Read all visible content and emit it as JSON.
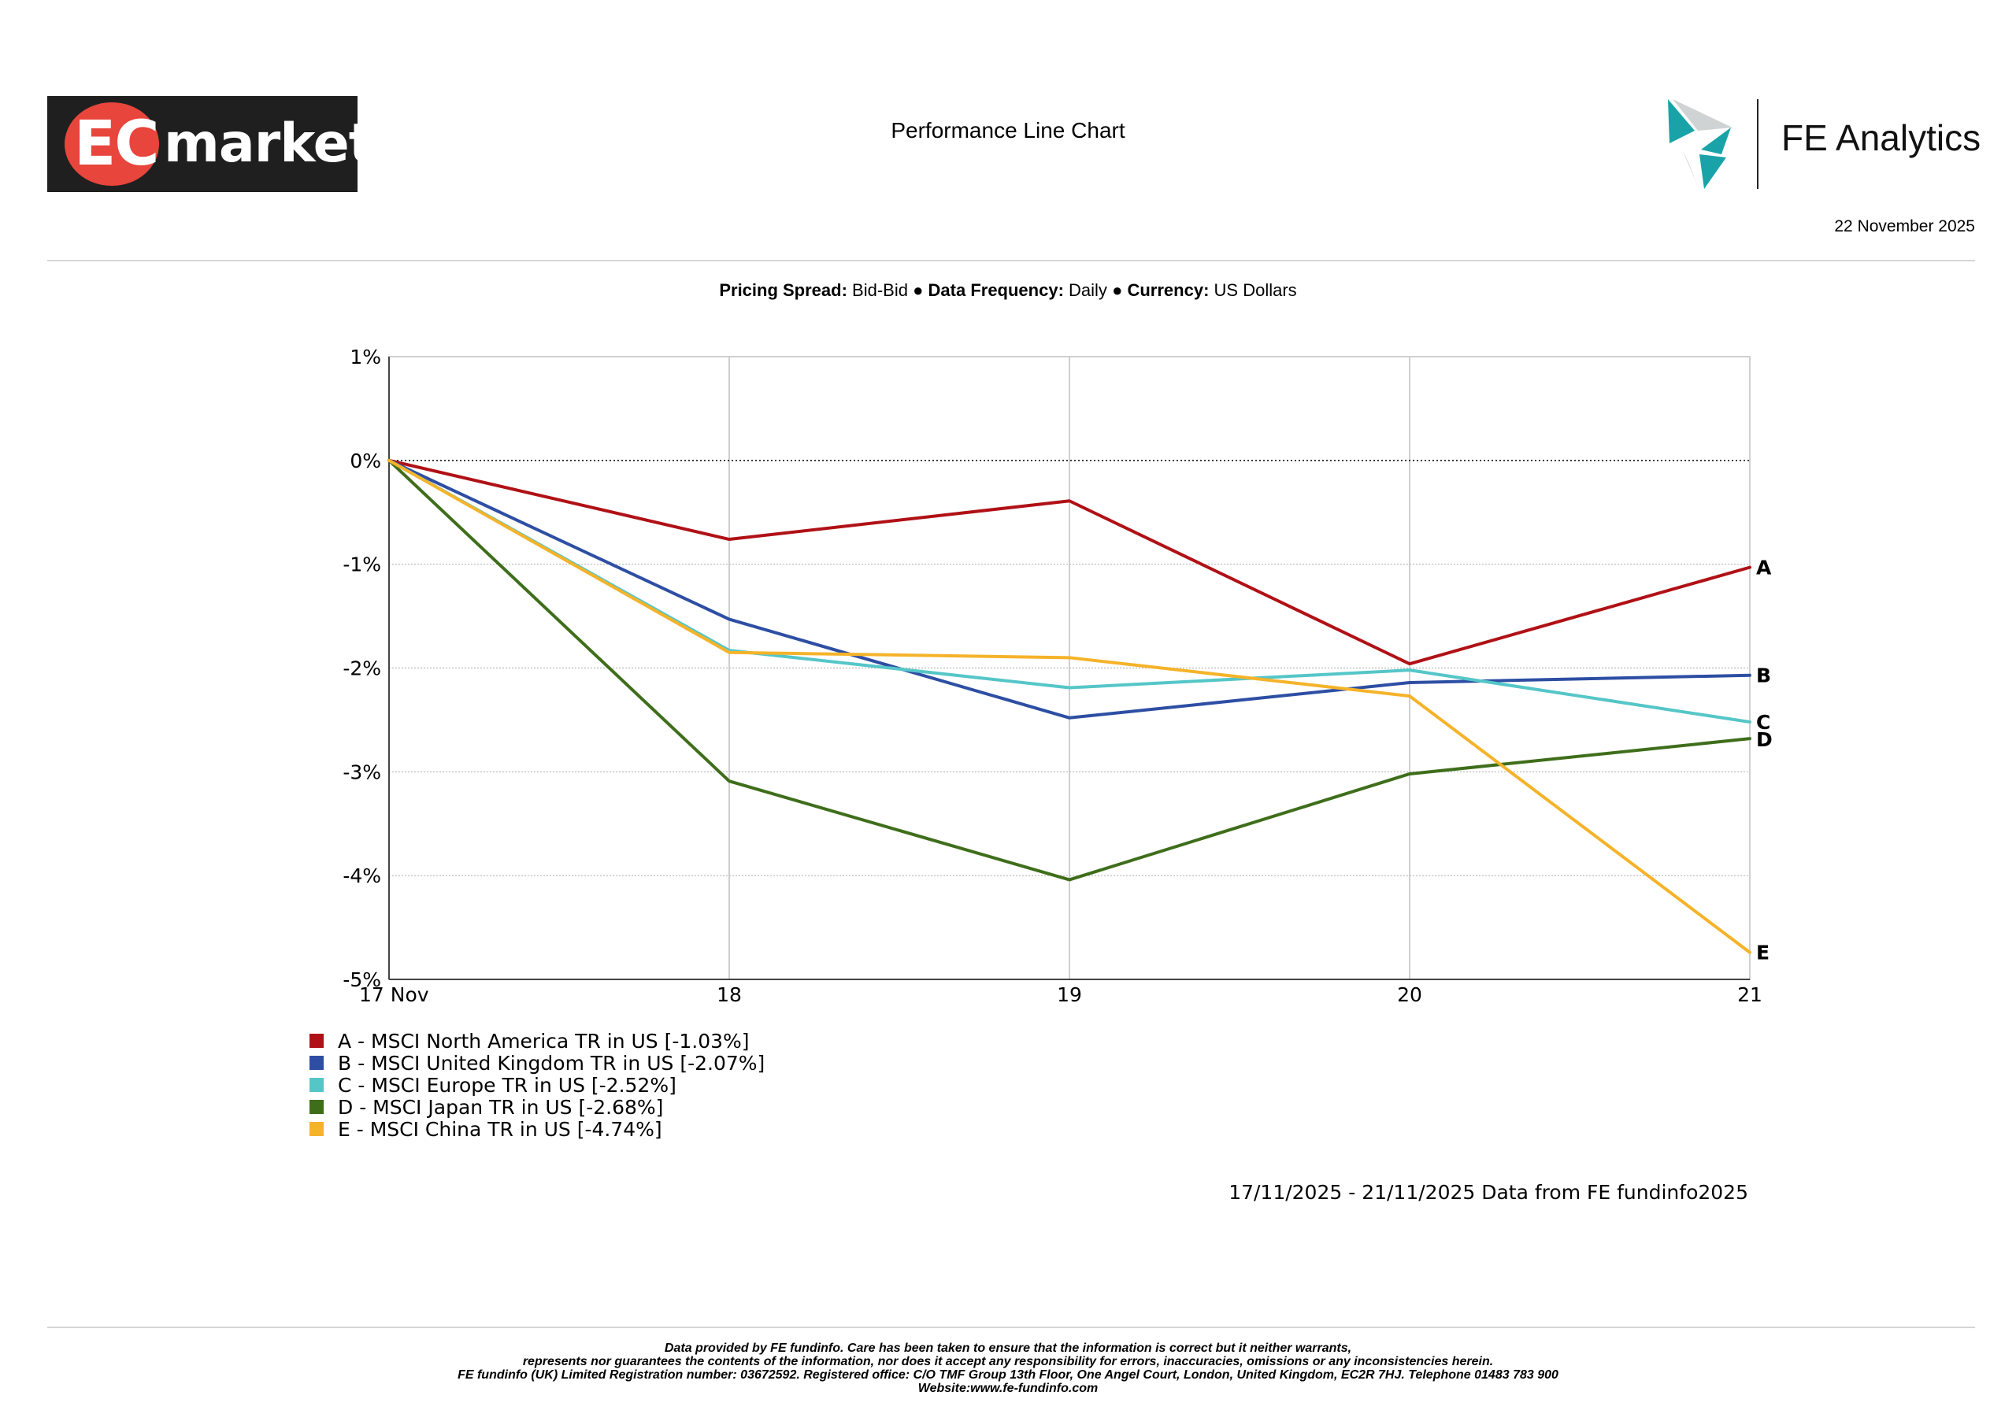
{
  "header": {
    "logo_left_text": "EC markets",
    "logo_left_part1": "EC",
    "logo_left_part2": "markets",
    "title": "Performance Line Chart",
    "logo_right_text": "FE Analytics",
    "date": "22 November 2025"
  },
  "spec": {
    "pricing_spread_label": "Pricing Spread:",
    "pricing_spread_value": "Bid-Bid",
    "sep1": "●",
    "data_frequency_label": "Data Frequency:",
    "data_frequency_value": "Daily",
    "sep2": "●",
    "currency_label": "Currency:",
    "currency_value": "US Dollars"
  },
  "chart_data": {
    "type": "line",
    "title": "Performance Line Chart",
    "x": [
      "17 Nov",
      "18",
      "19",
      "20",
      "21"
    ],
    "ylim": [
      -5,
      1
    ],
    "yticks": [
      1,
      0,
      -1,
      -2,
      -3,
      -4,
      -5
    ],
    "ytick_labels": [
      "1%",
      "0%",
      "-1%",
      "-2%",
      "-3%",
      "-4%",
      "-5%"
    ],
    "grid": true,
    "series": [
      {
        "id": "A",
        "name": "A - MSCI North America TR in US [-1.03%]",
        "color": "#b01116",
        "values": [
          0,
          -0.76,
          -0.39,
          -1.96,
          -1.03
        ]
      },
      {
        "id": "B",
        "name": "B - MSCI United Kingdom TR in US [-2.07%]",
        "color": "#2d4ea3",
        "values": [
          0,
          -1.53,
          -2.48,
          -2.14,
          -2.07
        ]
      },
      {
        "id": "C",
        "name": "C - MSCI Europe TR in US [-2.52%]",
        "color": "#55c6c8",
        "values": [
          0,
          -1.83,
          -2.19,
          -2.02,
          -2.52
        ]
      },
      {
        "id": "D",
        "name": "D - MSCI Japan TR in US [-2.68%]",
        "color": "#3f6e1b",
        "values": [
          0,
          -3.09,
          -4.04,
          -3.02,
          -2.68
        ]
      },
      {
        "id": "E",
        "name": "E - MSCI China TR in US [-4.74%]",
        "color": "#f5b32a",
        "values": [
          0,
          -1.85,
          -1.9,
          -2.27,
          -4.74
        ]
      }
    ]
  },
  "source_note": "17/11/2025 - 21/11/2025 Data from FE fundinfo2025",
  "disclaimer": [
    "Data provided by FE fundinfo. Care has been taken to ensure that the information is correct but it neither warrants,",
    "represents nor guarantees the contents of the information, nor does it accept any responsibility for errors, inaccuracies, omissions or any inconsistencies herein.",
    "FE fundinfo (UK) Limited Registration number: 03672592. Registered office: C/O TMF Group 13th Floor, One Angel Court, London, United Kingdom, EC2R 7HJ. Telephone 01483 783 900",
    "Website:www.fe-fundinfo.com"
  ]
}
